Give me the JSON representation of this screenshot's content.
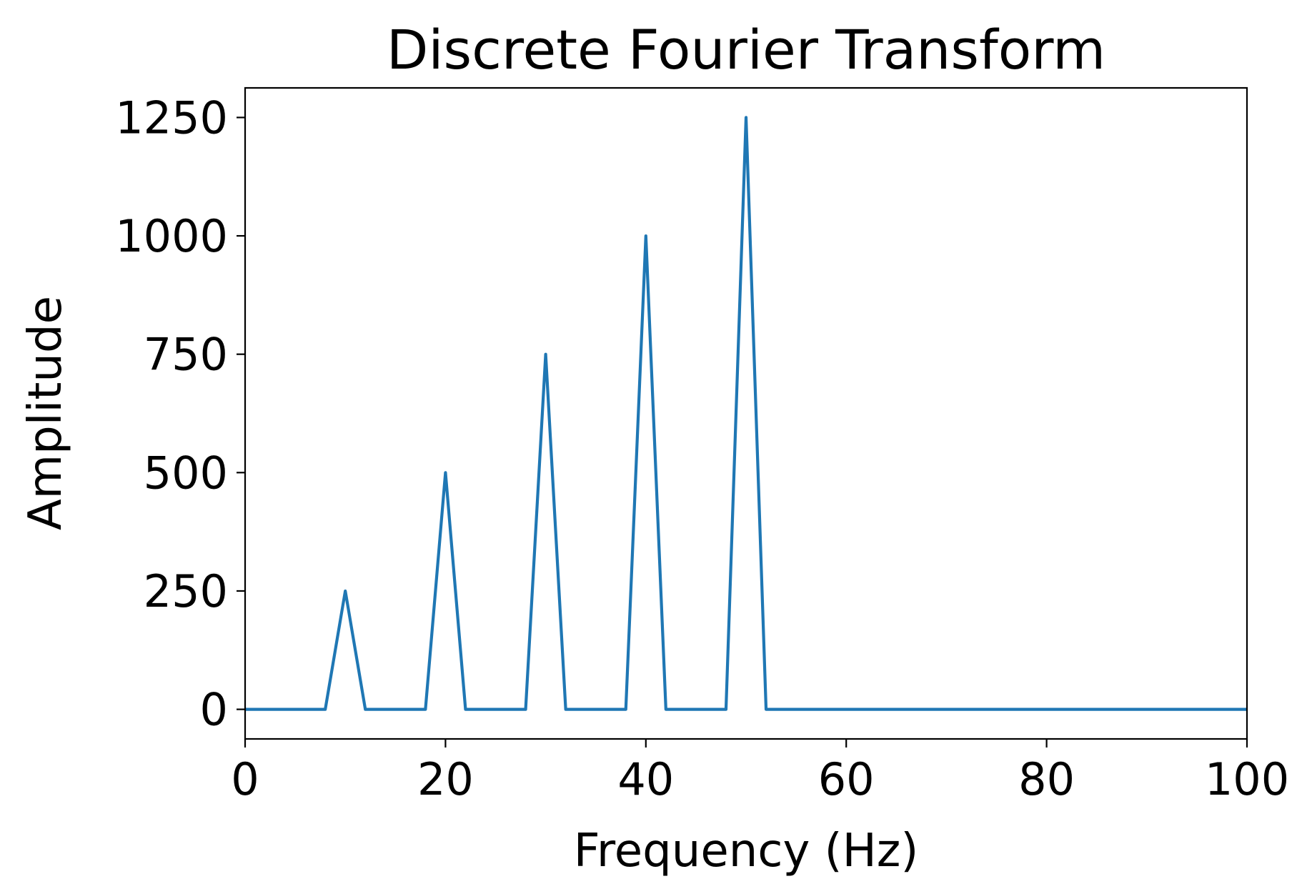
{
  "chart_data": {
    "type": "line",
    "title": "Discrete Fourier Transform",
    "xlabel": "Frequency (Hz)",
    "ylabel": "Amplitude",
    "xlim": [
      0,
      100
    ],
    "ylim": [
      -62.5,
      1312.5
    ],
    "xticks": [
      0,
      20,
      40,
      60,
      80,
      100
    ],
    "yticks": [
      0,
      250,
      500,
      750,
      1000,
      1250
    ],
    "xtick_labels": [
      "0",
      "20",
      "40",
      "60",
      "80",
      "100"
    ],
    "ytick_labels": [
      "0",
      "250",
      "500",
      "750",
      "1000",
      "1250"
    ],
    "grid": false,
    "series": [
      {
        "color": "#1f77b4",
        "x": [
          0,
          8,
          10,
          12,
          18,
          20,
          22,
          28,
          30,
          32,
          38,
          40,
          42,
          48,
          50,
          52,
          100
        ],
        "y": [
          0,
          0,
          250,
          0,
          0,
          500,
          0,
          0,
          750,
          0,
          0,
          1000,
          0,
          0,
          1250,
          0,
          0
        ]
      }
    ]
  }
}
